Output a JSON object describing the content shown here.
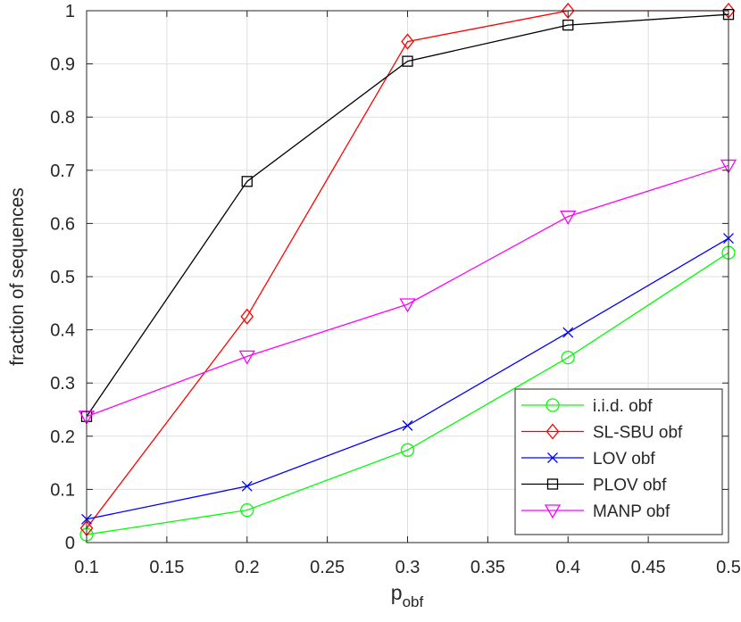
{
  "chart_data": {
    "type": "line",
    "xlabel": "p",
    "xlabel_sub": "obf",
    "ylabel": "fraction of sequences",
    "xlim": [
      0.1,
      0.5
    ],
    "ylim": [
      0,
      1
    ],
    "grid": true,
    "legend_position": "bottom-right",
    "x": [
      0.1,
      0.2,
      0.3,
      0.4,
      0.5
    ],
    "x_ticks": [
      "0.1",
      "0.15",
      "0.2",
      "0.25",
      "0.3",
      "0.35",
      "0.4",
      "0.45",
      "0.5"
    ],
    "y_ticks": [
      "0",
      "0.1",
      "0.2",
      "0.3",
      "0.4",
      "0.5",
      "0.6",
      "0.7",
      "0.8",
      "0.9",
      "1"
    ],
    "series": [
      {
        "name": "i.i.d. obf",
        "color": "#00ff00",
        "marker": "circle",
        "values": [
          0.015,
          0.061,
          0.174,
          0.348,
          0.545
        ]
      },
      {
        "name": "SL-SBU obf",
        "color": "#ff0000",
        "marker": "diamond",
        "values": [
          0.027,
          0.425,
          0.942,
          1.0,
          1.0
        ]
      },
      {
        "name": "LOV obf",
        "color": "#0000ff",
        "marker": "x",
        "values": [
          0.044,
          0.106,
          0.22,
          0.395,
          0.572
        ]
      },
      {
        "name": "PLOV obf",
        "color": "#000000",
        "marker": "square",
        "values": [
          0.237,
          0.679,
          0.905,
          0.973,
          0.993
        ]
      },
      {
        "name": "MANP obf",
        "color": "#ff00ff",
        "marker": "triangle-down",
        "values": [
          0.237,
          0.35,
          0.448,
          0.613,
          0.709
        ]
      }
    ]
  }
}
